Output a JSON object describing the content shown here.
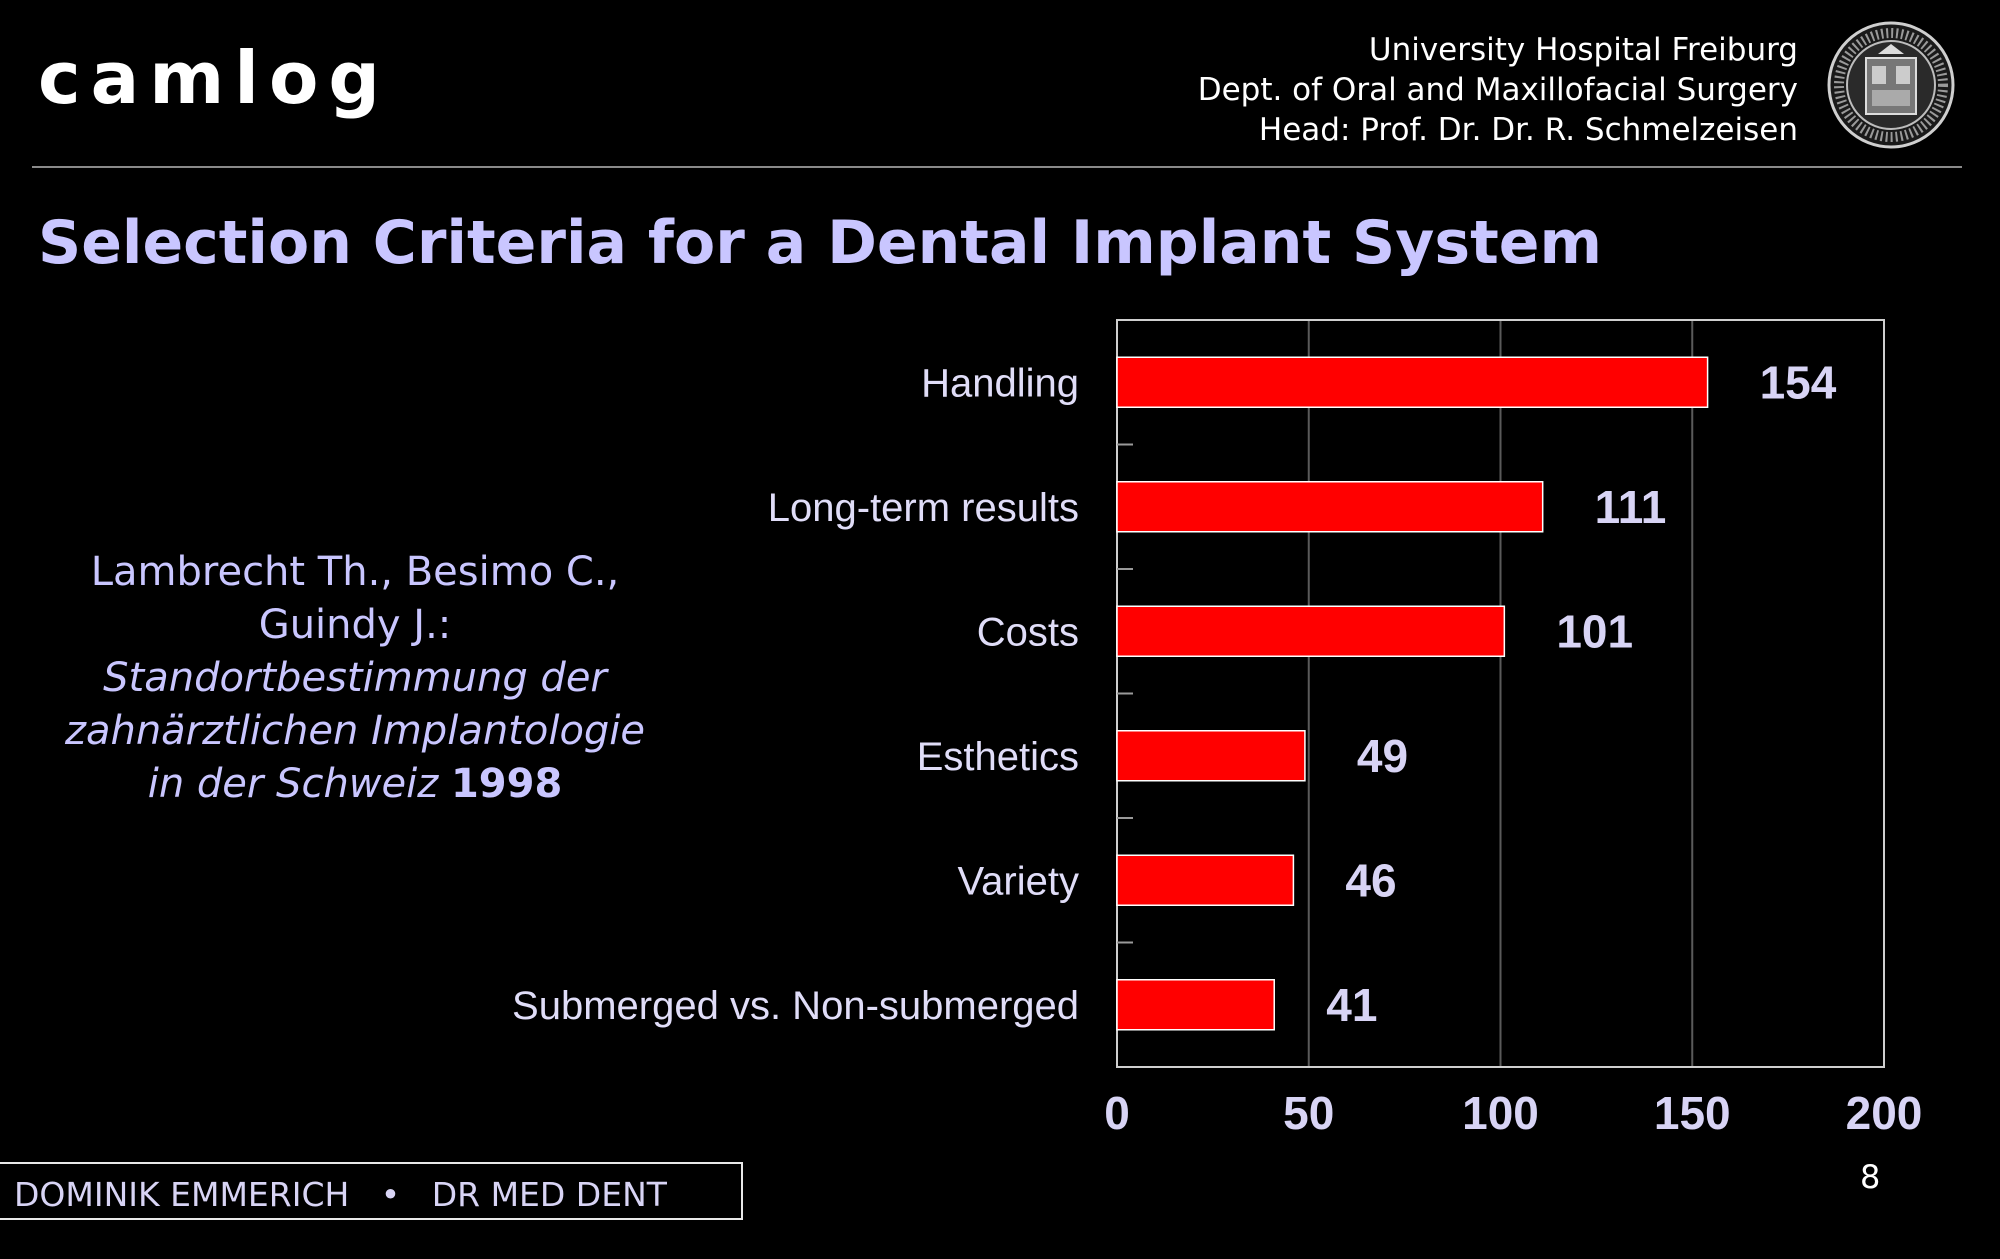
{
  "header": {
    "logo_text": "camlog",
    "institution_lines": [
      "University Hospital Freiburg",
      "Dept. of Oral and Maxillofacial Surgery",
      "Head: Prof. Dr. Dr. R. Schmelzeisen"
    ]
  },
  "slide_title": "Selection Criteria for a Dental Implant System",
  "citation": {
    "authors_line1": "Lambrecht Th., Besimo C.,",
    "authors_line2": "Guindy J.:",
    "title_line1": "Standortbestimmung der",
    "title_line2": "zahnärztlichen Implantologie",
    "title_line3": "in der Schweiz",
    "year": "1998"
  },
  "chart_data": {
    "type": "bar",
    "orientation": "horizontal",
    "categories": [
      "Handling",
      "Long-term results",
      "Costs",
      "Esthetics",
      "Variety",
      "Submerged vs. Non-submerged"
    ],
    "values": [
      154,
      111,
      101,
      49,
      46,
      41
    ],
    "data_labels": [
      "154",
      "111",
      "101",
      "49",
      "46",
      "41"
    ],
    "xlim": [
      0,
      200
    ],
    "x_ticks": [
      0,
      50,
      100,
      150,
      200
    ],
    "x_tick_labels": [
      "0",
      "50",
      "100",
      "150",
      "200"
    ],
    "grid": true,
    "legend": "none",
    "bar_color": "#ff0000",
    "title": "",
    "xlabel": "",
    "ylabel": ""
  },
  "footer": {
    "author": "DOMINIK EMMERICH",
    "separator": "•",
    "degree": "DR MED DENT"
  },
  "page_number": "8",
  "colors": {
    "background": "#000000",
    "title": "#c9c6ff",
    "text": "#d8d4f5",
    "bar": "#ff0000"
  }
}
